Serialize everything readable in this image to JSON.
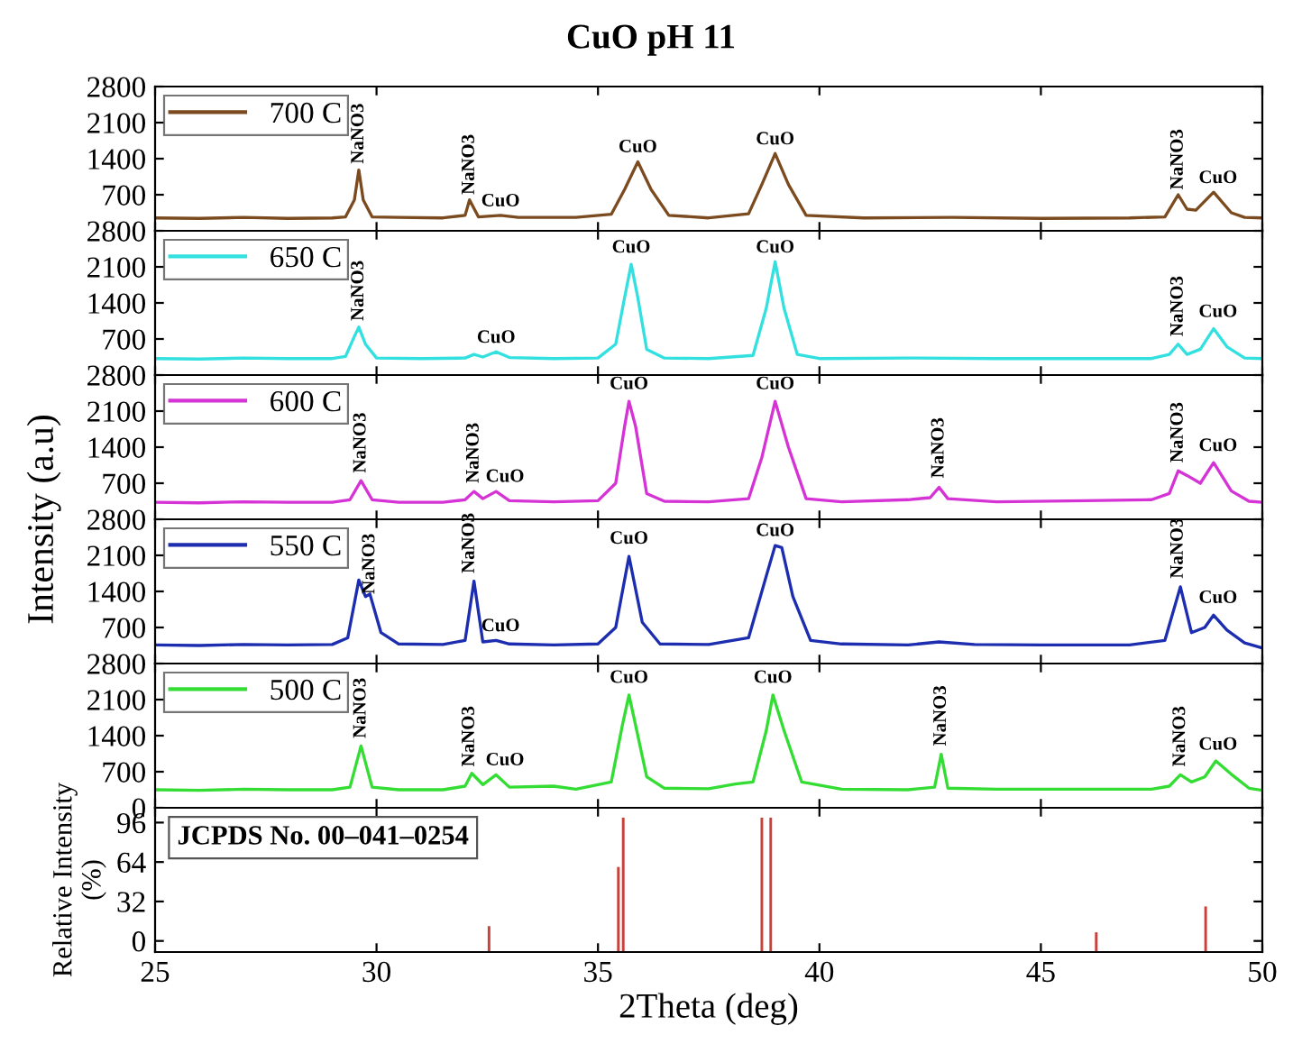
{
  "chart_data": [
    {
      "type": "line",
      "title": "CuO pH 11",
      "xlim": [
        25,
        50
      ],
      "xticks": [
        25,
        30,
        35,
        40,
        45,
        50
      ],
      "ylim": [
        0,
        2800
      ],
      "yticks": [
        700,
        1400,
        2100,
        2800
      ],
      "tick_labels": "y",
      "legend": "top left",
      "grid": false,
      "series": [
        {
          "name": "700 C",
          "color": "#7b4a1e",
          "x": [
            25,
            26,
            27,
            28,
            29,
            29.3,
            29.5,
            29.6,
            29.7,
            29.9,
            30.5,
            31.5,
            32.0,
            32.1,
            32.3,
            32.8,
            33.2,
            34.5,
            35.3,
            35.6,
            35.9,
            36.2,
            36.6,
            37.5,
            38.4,
            38.7,
            39.0,
            39.3,
            39.7,
            41,
            43,
            45,
            47,
            47.8,
            48.1,
            48.3,
            48.5,
            48.9,
            49.3,
            49.6,
            50
          ],
          "values": [
            250,
            240,
            260,
            240,
            250,
            270,
            600,
            1180,
            600,
            270,
            260,
            250,
            300,
            600,
            270,
            300,
            260,
            260,
            320,
            800,
            1340,
            800,
            300,
            250,
            330,
            900,
            1500,
            900,
            300,
            250,
            260,
            240,
            250,
            270,
            700,
            420,
            400,
            750,
            350,
            260,
            250
          ]
        }
      ],
      "annotations": [
        {
          "text": "NaNO3",
          "x": 29.6,
          "y": 1300
        },
        {
          "text": "NaNO3",
          "x": 32.1,
          "y": 700
        },
        {
          "text": "CuO",
          "x": 32.8,
          "y": 400
        },
        {
          "text": "CuO",
          "x": 35.9,
          "y": 1450
        },
        {
          "text": "CuO",
          "x": 39.0,
          "y": 1600
        },
        {
          "text": "NaNO3",
          "x": 48.1,
          "y": 800
        },
        {
          "text": "CuO",
          "x": 49.0,
          "y": 850
        }
      ]
    },
    {
      "type": "line",
      "xlim": [
        25,
        50
      ],
      "xticks": [
        25,
        30,
        35,
        40,
        45,
        50
      ],
      "ylim": [
        0,
        2800
      ],
      "yticks": [
        700,
        1400,
        2100,
        2800
      ],
      "tick_labels": "y",
      "legend": "top left",
      "grid": false,
      "series": [
        {
          "name": "650 C",
          "color": "#33e0e0",
          "x": [
            25,
            26,
            27,
            28,
            29,
            29.3,
            29.5,
            29.6,
            29.75,
            30,
            31,
            32,
            32.2,
            32.4,
            32.7,
            33,
            34,
            35,
            35.4,
            35.6,
            35.75,
            35.9,
            36.1,
            36.5,
            37.5,
            38.5,
            38.8,
            39.0,
            39.2,
            39.5,
            40,
            42,
            44,
            46,
            47.5,
            47.9,
            48.1,
            48.3,
            48.6,
            48.9,
            49.2,
            49.6,
            50
          ],
          "values": [
            320,
            310,
            330,
            320,
            320,
            360,
            750,
            930,
            600,
            330,
            320,
            330,
            400,
            350,
            450,
            340,
            320,
            330,
            600,
            1500,
            2150,
            1500,
            500,
            330,
            320,
            380,
            1300,
            2200,
            1300,
            400,
            320,
            330,
            320,
            320,
            320,
            400,
            600,
            400,
            500,
            900,
            550,
            330,
            320
          ]
        }
      ],
      "annotations": [
        {
          "text": "NaNO3",
          "x": 29.6,
          "y": 1050
        },
        {
          "text": "CuO",
          "x": 32.7,
          "y": 550
        },
        {
          "text": "CuO",
          "x": 35.75,
          "y": 2300
        },
        {
          "text": "CuO",
          "x": 39.0,
          "y": 2300
        },
        {
          "text": "NaNO3",
          "x": 48.1,
          "y": 750
        },
        {
          "text": "CuO",
          "x": 49.0,
          "y": 1050
        }
      ]
    },
    {
      "type": "line",
      "ylabel": "Intensity (a.u)",
      "xlim": [
        25,
        50
      ],
      "xticks": [
        25,
        30,
        35,
        40,
        45,
        50
      ],
      "ylim": [
        0,
        2800
      ],
      "yticks": [
        700,
        1400,
        2100,
        2800
      ],
      "tick_labels": "y",
      "legend": "top left",
      "grid": false,
      "series": [
        {
          "name": "600 C",
          "color": "#d633d6",
          "x": [
            25,
            26,
            27,
            28,
            29,
            29.4,
            29.65,
            29.9,
            30.5,
            31.5,
            32.0,
            32.2,
            32.4,
            32.7,
            33.0,
            34,
            35,
            35.4,
            35.6,
            35.7,
            35.85,
            36.1,
            36.5,
            37.5,
            38.4,
            38.7,
            39.0,
            39.3,
            39.7,
            40.5,
            42,
            42.5,
            42.7,
            42.9,
            44,
            46,
            47.5,
            47.9,
            48.1,
            48.3,
            48.6,
            48.9,
            49.3,
            49.7,
            50
          ],
          "values": [
            330,
            320,
            340,
            330,
            330,
            380,
            750,
            380,
            330,
            330,
            380,
            540,
            400,
            540,
            360,
            340,
            360,
            700,
            1800,
            2290,
            1800,
            500,
            350,
            340,
            400,
            1200,
            2290,
            1400,
            400,
            340,
            380,
            420,
            620,
            400,
            340,
            360,
            380,
            500,
            940,
            850,
            700,
            1100,
            550,
            350,
            330
          ]
        }
      ],
      "annotations": [
        {
          "text": "NaNO3",
          "x": 29.65,
          "y": 900
        },
        {
          "text": "NaNO3",
          "x": 32.2,
          "y": 700
        },
        {
          "text": "CuO",
          "x": 32.9,
          "y": 650
        },
        {
          "text": "CuO",
          "x": 35.7,
          "y": 2450
        },
        {
          "text": "CuO",
          "x": 39.0,
          "y": 2450
        },
        {
          "text": "NaNO3",
          "x": 42.7,
          "y": 800
        },
        {
          "text": "NaNO3",
          "x": 48.1,
          "y": 1100
        },
        {
          "text": "CuO",
          "x": 49.0,
          "y": 1250
        }
      ]
    },
    {
      "type": "line",
      "xlim": [
        25,
        50
      ],
      "xticks": [
        25,
        30,
        35,
        40,
        45,
        50
      ],
      "ylim": [
        0,
        2800
      ],
      "yticks": [
        700,
        1400,
        2100,
        2800
      ],
      "tick_labels": "y",
      "legend": "top left",
      "grid": false,
      "series": [
        {
          "name": "550 C",
          "color": "#1c2db0",
          "x": [
            25,
            26,
            27,
            28,
            29,
            29.35,
            29.6,
            29.75,
            29.85,
            30.1,
            30.5,
            31.5,
            32.0,
            32.2,
            32.4,
            32.7,
            33,
            34,
            35,
            35.4,
            35.7,
            36.0,
            36.4,
            37.5,
            38.4,
            38.8,
            39.0,
            39.15,
            39.4,
            39.8,
            40.5,
            42,
            42.7,
            43.5,
            45,
            47,
            47.8,
            48.15,
            48.4,
            48.7,
            48.9,
            49.2,
            49.6,
            50
          ],
          "values": [
            360,
            350,
            370,
            360,
            370,
            500,
            1620,
            1300,
            1350,
            600,
            380,
            370,
            450,
            1600,
            420,
            450,
            380,
            360,
            380,
            700,
            2080,
            800,
            380,
            370,
            500,
            1700,
            2290,
            2250,
            1300,
            450,
            380,
            360,
            420,
            370,
            360,
            360,
            450,
            1490,
            600,
            700,
            940,
            650,
            400,
            300
          ]
        }
      ],
      "annotations": [
        {
          "text": "NaNO3",
          "x": 29.85,
          "y": 1350
        },
        {
          "text": "NaNO3",
          "x": 32.1,
          "y": 1750
        },
        {
          "text": "CuO",
          "x": 32.8,
          "y": 550
        },
        {
          "text": "CuO",
          "x": 35.7,
          "y": 2250
        },
        {
          "text": "CuO",
          "x": 39.0,
          "y": 2400
        },
        {
          "text": "NaNO3",
          "x": 48.1,
          "y": 1650
        },
        {
          "text": "CuO",
          "x": 49.0,
          "y": 1100
        }
      ]
    },
    {
      "type": "line",
      "xlim": [
        25,
        50
      ],
      "xticks": [
        25,
        30,
        35,
        40,
        45,
        50
      ],
      "ylim": [
        0,
        2800
      ],
      "yticks": [
        0,
        700,
        1400,
        2100,
        2800
      ],
      "tick_labels": "y",
      "legend": "top left",
      "grid": false,
      "series": [
        {
          "name": "500 C",
          "color": "#33dd33",
          "x": [
            25,
            26,
            27,
            28,
            29,
            29.4,
            29.65,
            29.9,
            30.5,
            31.5,
            32.0,
            32.15,
            32.4,
            32.7,
            33.0,
            34.0,
            34.5,
            35.3,
            35.55,
            35.7,
            35.85,
            36.1,
            36.5,
            37.5,
            38.1,
            38.5,
            38.8,
            38.95,
            39.2,
            39.6,
            40.5,
            42,
            42.6,
            42.75,
            42.9,
            44,
            46,
            47.5,
            47.9,
            48.15,
            48.4,
            48.7,
            48.95,
            49.3,
            49.7,
            50
          ],
          "values": [
            350,
            340,
            360,
            350,
            350,
            400,
            1200,
            400,
            350,
            350,
            420,
            670,
            450,
            640,
            400,
            420,
            360,
            500,
            1600,
            2190,
            1600,
            600,
            380,
            370,
            460,
            500,
            1500,
            2190,
            1500,
            500,
            360,
            350,
            400,
            1040,
            380,
            360,
            360,
            360,
            420,
            640,
            500,
            600,
            910,
            650,
            380,
            340
          ]
        }
      ],
      "annotations": [
        {
          "text": "NaNO3",
          "x": 29.65,
          "y": 1350
        },
        {
          "text": "NaNO3",
          "x": 32.1,
          "y": 800
        },
        {
          "text": "CuO",
          "x": 32.9,
          "y": 750
        },
        {
          "text": "CuO",
          "x": 35.7,
          "y": 2350
        },
        {
          "text": "CuO",
          "x": 38.95,
          "y": 2350
        },
        {
          "text": "NaNO3",
          "x": 42.75,
          "y": 1200
        },
        {
          "text": "NaNO3",
          "x": 48.15,
          "y": 800
        },
        {
          "text": "CuO",
          "x": 49.0,
          "y": 1050
        }
      ]
    },
    {
      "type": "bar",
      "xlabel": "2Theta (deg)",
      "ylabel": "Relative Intensity\n(%)",
      "xlim": [
        25,
        50
      ],
      "xticks": [
        25,
        30,
        35,
        40,
        45,
        50
      ],
      "ylim": [
        -9,
        108
      ],
      "yticks": [
        0,
        32,
        64,
        96
      ],
      "grid": false,
      "color": "#c8413b",
      "x": [
        32.54,
        35.46,
        35.57,
        38.7,
        38.9,
        46.25,
        48.72
      ],
      "base": [
        -9,
        -9,
        -9,
        -9,
        -9,
        -9,
        -9
      ],
      "values": [
        21,
        69,
        109,
        109,
        109,
        16,
        37
      ],
      "annotations": [
        "JCPDS No. 00–041–0254"
      ]
    }
  ]
}
